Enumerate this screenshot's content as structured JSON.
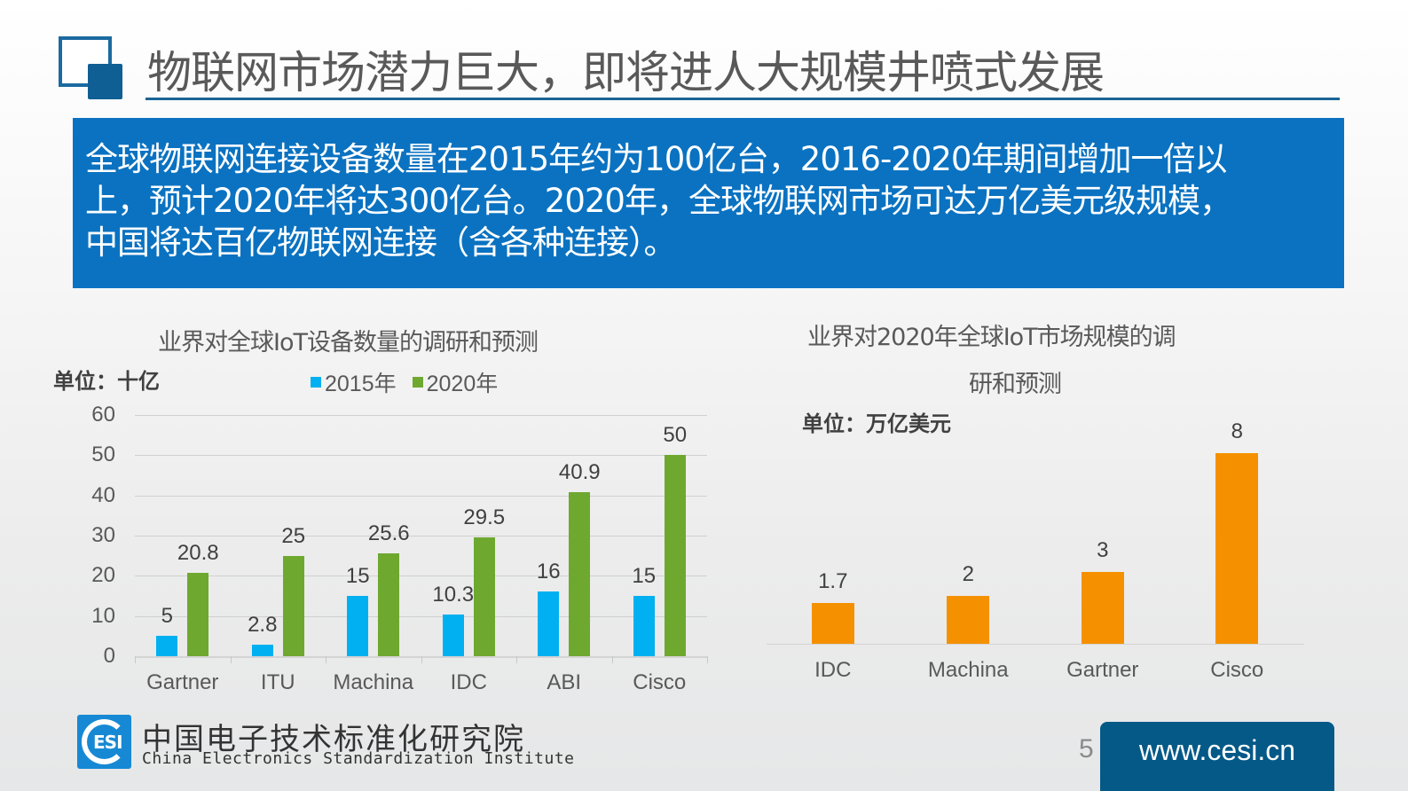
{
  "slide": {
    "title": "物联网市场潜力巨大，即将进人大规模井喷式发展",
    "banner_lines": [
      "全球物联网连接设备数量在2015年约为100亿台，2016-2020年期间增加一倍以",
      "上，预计2020年将达300亿台。2020年，全球物联网市场可达万亿美元级规模，",
      "中国将达百亿物联网连接（含各种连接）。"
    ],
    "page_number": "5"
  },
  "colors": {
    "banner": "#0a72c1",
    "title_rule": "#1a6496",
    "series_2015": "#00b0f0",
    "series_2020": "#6fa82f",
    "market_bar": "#f59100",
    "url_box": "#045987"
  },
  "footer": {
    "logo_text": "ESI",
    "org_name_cn": "中国电子技术标准化研究院",
    "org_name_en": "China Electronics Standardization Institute",
    "url": "www.cesi.cn"
  },
  "chart_data": [
    {
      "type": "bar",
      "title": "业界对全球IoT设备数量的调研和预测",
      "unit_label": "单位：十亿",
      "xlabel": "",
      "ylabel": "",
      "categories": [
        "Gartner",
        "ITU",
        "Machina",
        "IDC",
        "ABI",
        "Cisco"
      ],
      "series": [
        {
          "name": "2015年",
          "values": [
            5,
            2.8,
            15,
            10.3,
            16,
            15
          ]
        },
        {
          "name": "2020年",
          "values": [
            20.8,
            25,
            25.6,
            29.5,
            40.9,
            50
          ]
        }
      ],
      "value_labels": [
        [
          "5",
          "2.8",
          "15",
          "10.3",
          "16",
          "15"
        ],
        [
          "20.8",
          "25",
          "25.6",
          "29.5",
          "40.9",
          "50"
        ]
      ],
      "yticks": [
        "0",
        "10",
        "20",
        "30",
        "40",
        "50",
        "60"
      ],
      "ylim": [
        0,
        60
      ],
      "grid": true,
      "legend_position": "top"
    },
    {
      "type": "bar",
      "title": "业界对2020年全球IoT市场规模的调研和预测",
      "title_lines": [
        "业界对2020年全球IoT市场规模的调",
        "研和预测"
      ],
      "unit_label": "单位：万亿美元",
      "xlabel": "",
      "ylabel": "",
      "categories": [
        "IDC",
        "Machina",
        "Gartner",
        "Cisco"
      ],
      "values": [
        1.7,
        2,
        3,
        8
      ],
      "value_labels": [
        "1.7",
        "2",
        "3",
        "8"
      ],
      "ylim": [
        0,
        8
      ],
      "grid": false,
      "legend_position": "none"
    }
  ]
}
